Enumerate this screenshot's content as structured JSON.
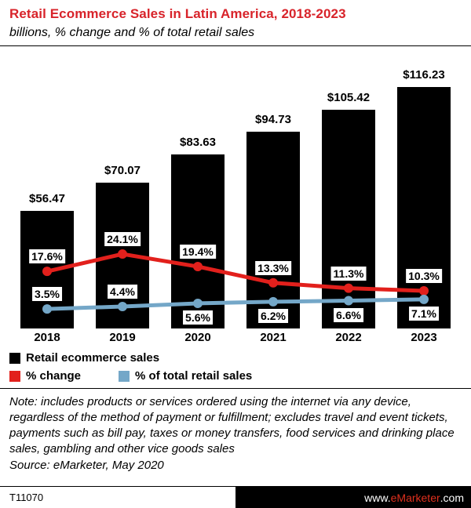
{
  "header": {
    "title": "Retail Ecommerce Sales in Latin America, 2018-2023",
    "subtitle": "billions, % change and % of total retail sales"
  },
  "chart_data": {
    "type": "bar",
    "title": "Retail Ecommerce Sales in Latin America, 2018-2023",
    "subtitle": "billions, % change and % of total retail sales",
    "categories": [
      "2018",
      "2019",
      "2020",
      "2021",
      "2022",
      "2023"
    ],
    "series": [
      {
        "name": "Retail ecommerce sales",
        "type": "bar",
        "unit": "billions of dollars",
        "color": "#000000",
        "values": [
          56.47,
          70.07,
          83.63,
          94.73,
          105.42,
          116.23
        ],
        "labels": [
          "$56.47",
          "$70.07",
          "$83.63",
          "$94.73",
          "$105.42",
          "$116.23"
        ]
      },
      {
        "name": "% change",
        "type": "line",
        "unit": "percent",
        "color": "#e2201c",
        "values": [
          17.6,
          24.1,
          19.4,
          13.3,
          11.3,
          10.3
        ],
        "labels": [
          "17.6%",
          "24.1%",
          "19.4%",
          "13.3%",
          "11.3%",
          "10.3%"
        ]
      },
      {
        "name": "% of total retail sales",
        "type": "line",
        "unit": "percent",
        "color": "#74a7c8",
        "values": [
          3.5,
          4.4,
          5.6,
          6.2,
          6.6,
          7.1
        ],
        "labels": [
          "3.5%",
          "4.4%",
          "5.6%",
          "6.2%",
          "6.6%",
          "7.1%"
        ]
      }
    ],
    "xlabel": "",
    "ylabel": "",
    "ylim_bars": [
      0,
      120
    ],
    "ylim_lines": [
      0,
      25
    ],
    "grid": false,
    "legend_position": "bottom",
    "data_labels_shown": true
  },
  "legend": {
    "items": [
      {
        "label": "Retail ecommerce sales",
        "color": "#000000"
      },
      {
        "label": "% change",
        "color": "#e2201c"
      },
      {
        "label": "% of total retail sales",
        "color": "#74a7c8"
      }
    ]
  },
  "note": {
    "text": "Note: includes products or services ordered using the internet via any device, regardless of the method of payment or fulfillment; excludes travel and event tickets, payments such as bill pay, taxes or money transfers, food services and drinking place sales, gambling and other vice goods sales",
    "source": "Source: eMarketer, May 2020"
  },
  "footer": {
    "chart_id": "T11070",
    "site": {
      "prefix": "www.",
      "brand": "eMarketer",
      "suffix": ".com"
    }
  },
  "colors": {
    "brand_red": "#d8232a",
    "bar_black": "#000000",
    "line_red": "#e2201c",
    "line_blue": "#74a7c8"
  }
}
